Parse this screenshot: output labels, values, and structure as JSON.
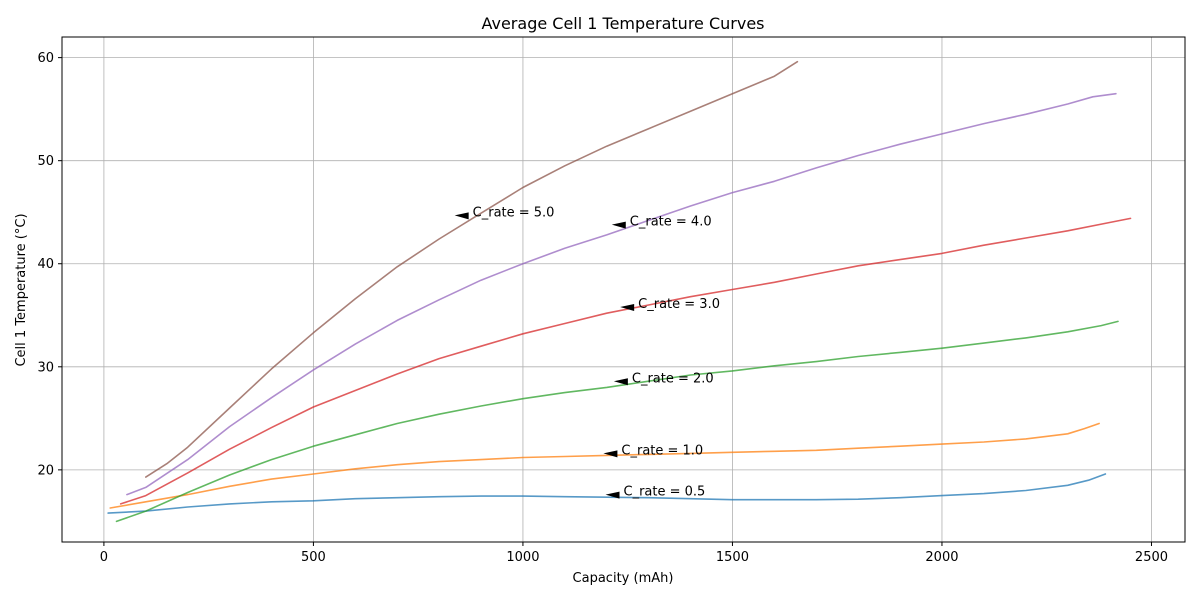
{
  "chart_data": {
    "type": "line",
    "title": "Average Cell 1 Temperature Curves",
    "xlabel": "Capacity (mAh)",
    "ylabel": "Cell 1 Temperature (°C)",
    "xlim": [
      -100,
      2580
    ],
    "ylim": [
      13,
      62
    ],
    "xticks": [
      0,
      500,
      1000,
      1500,
      2000,
      2500
    ],
    "yticks": [
      20,
      30,
      40,
      50,
      60
    ],
    "grid": true,
    "series": [
      {
        "rate": "0.5",
        "color": "#1f77b4",
        "x": [
          10,
          100,
          200,
          300,
          400,
          500,
          600,
          700,
          800,
          900,
          1000,
          1100,
          1200,
          1300,
          1400,
          1500,
          1600,
          1700,
          1800,
          1900,
          2000,
          2100,
          2200,
          2300,
          2350,
          2390
        ],
        "y": [
          15.8,
          16.0,
          16.4,
          16.7,
          16.9,
          17.0,
          17.2,
          17.3,
          17.4,
          17.45,
          17.45,
          17.4,
          17.35,
          17.3,
          17.2,
          17.1,
          17.1,
          17.1,
          17.15,
          17.3,
          17.5,
          17.7,
          18.0,
          18.5,
          19.0,
          19.6
        ]
      },
      {
        "rate": "1.0",
        "color": "#ff7f0e",
        "x": [
          15,
          100,
          200,
          300,
          400,
          500,
          600,
          700,
          800,
          900,
          1000,
          1100,
          1200,
          1300,
          1400,
          1500,
          1600,
          1700,
          1800,
          1900,
          2000,
          2100,
          2200,
          2300,
          2340,
          2375
        ],
        "y": [
          16.3,
          16.9,
          17.6,
          18.4,
          19.1,
          19.6,
          20.1,
          20.5,
          20.8,
          21.0,
          21.2,
          21.3,
          21.4,
          21.5,
          21.6,
          21.7,
          21.8,
          21.9,
          22.1,
          22.3,
          22.5,
          22.7,
          23.0,
          23.5,
          24.0,
          24.5
        ]
      },
      {
        "rate": "2.0",
        "color": "#2ca02c",
        "x": [
          30,
          100,
          200,
          300,
          400,
          500,
          600,
          700,
          800,
          900,
          1000,
          1100,
          1200,
          1300,
          1400,
          1500,
          1600,
          1700,
          1800,
          1900,
          2000,
          2100,
          2200,
          2300,
          2380,
          2420
        ],
        "y": [
          15.0,
          16.0,
          17.8,
          19.5,
          21.0,
          22.3,
          23.4,
          24.5,
          25.4,
          26.2,
          26.9,
          27.5,
          28.0,
          28.6,
          29.2,
          29.6,
          30.1,
          30.5,
          31.0,
          31.4,
          31.8,
          32.3,
          32.8,
          33.4,
          34.0,
          34.4
        ]
      },
      {
        "rate": "3.0",
        "color": "#d62728",
        "x": [
          40,
          100,
          200,
          300,
          400,
          500,
          600,
          700,
          800,
          900,
          1000,
          1100,
          1200,
          1300,
          1400,
          1500,
          1600,
          1700,
          1800,
          1900,
          2000,
          2100,
          2200,
          2300,
          2400,
          2450
        ],
        "y": [
          16.7,
          17.5,
          19.7,
          22.0,
          24.1,
          26.1,
          27.7,
          29.3,
          30.8,
          32.0,
          33.2,
          34.2,
          35.2,
          36.0,
          36.8,
          37.5,
          38.2,
          39.0,
          39.8,
          40.4,
          41.0,
          41.8,
          42.5,
          43.2,
          44.0,
          44.4
        ]
      },
      {
        "rate": "4.0",
        "color": "#9467bd",
        "x": [
          55,
          100,
          200,
          300,
          400,
          500,
          600,
          700,
          800,
          900,
          1000,
          1100,
          1200,
          1300,
          1400,
          1500,
          1600,
          1700,
          1800,
          1900,
          2000,
          2100,
          2200,
          2300,
          2360,
          2415
        ],
        "y": [
          17.6,
          18.3,
          21.0,
          24.2,
          27.0,
          29.7,
          32.2,
          34.5,
          36.5,
          38.4,
          40.0,
          41.5,
          42.8,
          44.2,
          45.6,
          46.9,
          48.0,
          49.3,
          50.5,
          51.6,
          52.6,
          53.6,
          54.5,
          55.5,
          56.2,
          56.5
        ]
      },
      {
        "rate": "5.0",
        "color": "#8c564b",
        "x": [
          100,
          150,
          200,
          300,
          400,
          500,
          600,
          700,
          800,
          900,
          1000,
          1100,
          1200,
          1300,
          1400,
          1500,
          1600,
          1655
        ],
        "y": [
          19.3,
          20.6,
          22.2,
          26.0,
          29.8,
          33.3,
          36.6,
          39.7,
          42.4,
          44.9,
          47.4,
          49.5,
          51.4,
          53.1,
          54.8,
          56.5,
          58.2,
          59.6
        ]
      }
    ],
    "annotations": [
      {
        "text": "C_rate = 0.5",
        "x": 1240,
        "y": 17.5
      },
      {
        "text": "C_rate = 1.0",
        "x": 1235,
        "y": 21.5
      },
      {
        "text": "C_rate = 2.0",
        "x": 1260,
        "y": 28.5
      },
      {
        "text": "C_rate = 3.0",
        "x": 1275,
        "y": 35.7
      },
      {
        "text": "C_rate = 4.0",
        "x": 1255,
        "y": 43.7
      },
      {
        "text": "C_rate = 5.0",
        "x": 880,
        "y": 44.6
      }
    ]
  }
}
